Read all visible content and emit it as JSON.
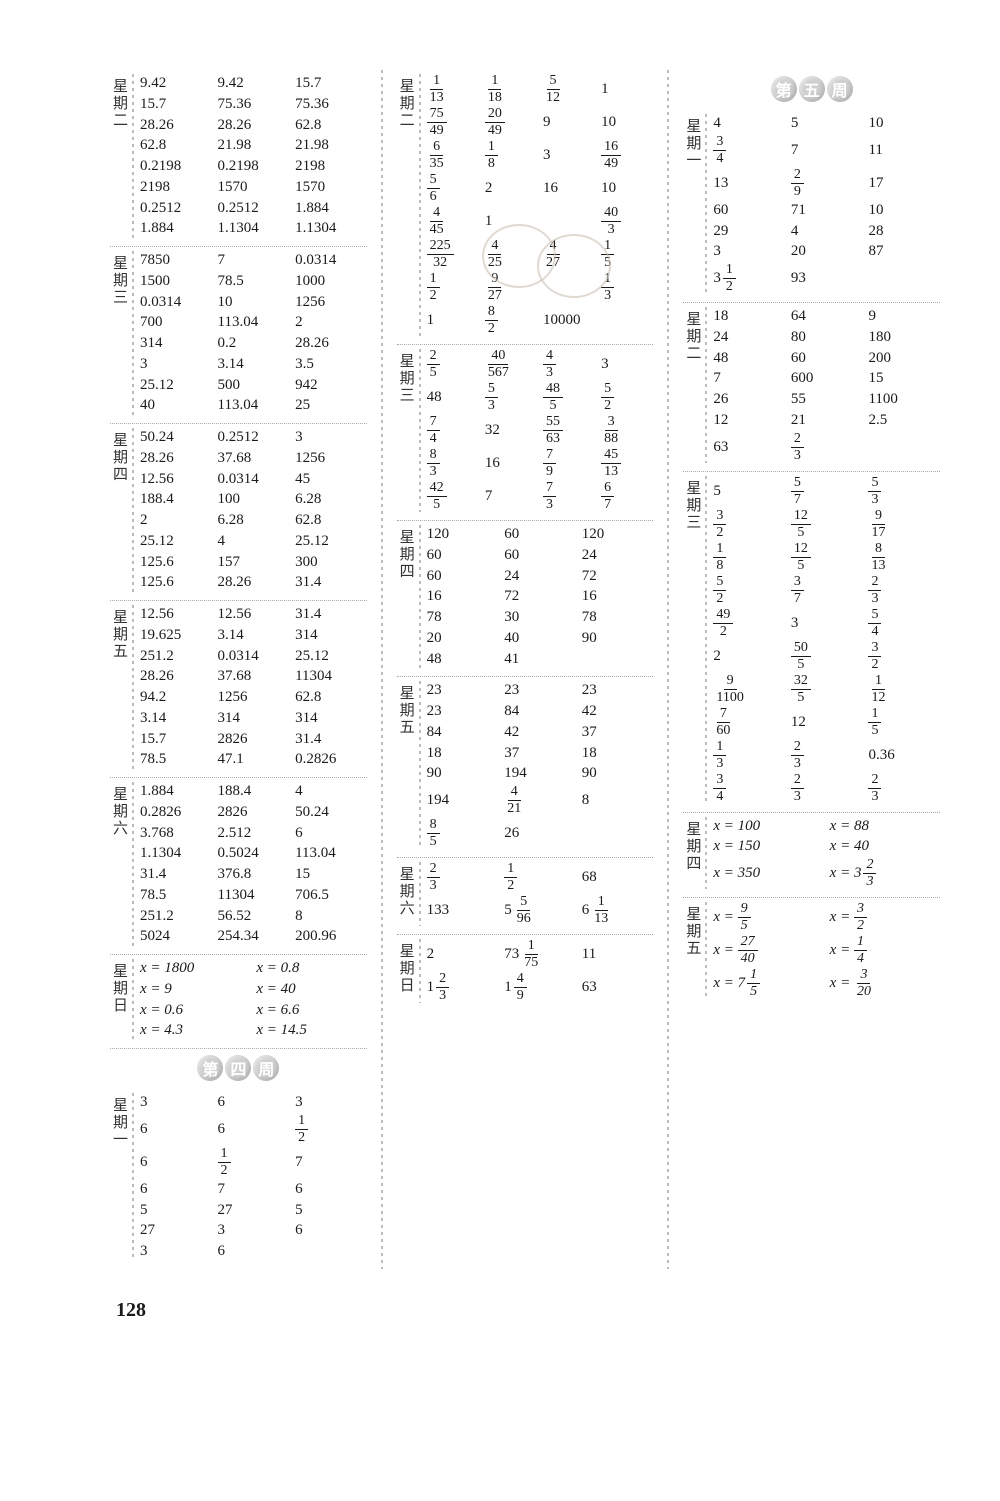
{
  "page_number": "128",
  "week_badges": {
    "w4": [
      "第",
      "四",
      "周"
    ],
    "w5": [
      "第",
      "五",
      "周"
    ]
  },
  "columns": [
    {
      "blocks": [
        {
          "label": "星期二",
          "cols": 3,
          "cells": [
            "9.42",
            "9.42",
            "15.7",
            "15.7",
            "75.36",
            "75.36",
            "28.26",
            "28.26",
            "62.8",
            "62.8",
            "21.98",
            "21.98",
            "0.2198",
            "0.2198",
            "2198",
            "2198",
            "1570",
            "1570",
            "0.2512",
            "0.2512",
            "1.884",
            "1.884",
            "1.1304",
            "1.1304"
          ]
        },
        {
          "label": "星期三",
          "cols": 3,
          "cells": [
            "7850",
            "7",
            "0.0314",
            "1500",
            "78.5",
            "1000",
            "0.0314",
            "10",
            "1256",
            "700",
            "113.04",
            "2",
            "314",
            "0.2",
            "28.26",
            "3",
            "3.14",
            "3.5",
            "25.12",
            "500",
            "942",
            "40",
            "113.04",
            "25"
          ]
        },
        {
          "label": "星期四",
          "cols": 3,
          "cells": [
            "50.24",
            "0.2512",
            "3",
            "28.26",
            "37.68",
            "1256",
            "12.56",
            "0.0314",
            "45",
            "188.4",
            "100",
            "6.28",
            "2",
            "6.28",
            "62.8",
            "25.12",
            "4",
            "25.12",
            "125.6",
            "157",
            "300",
            "125.6",
            "28.26",
            "31.4"
          ]
        },
        {
          "label": "星期五",
          "cols": 3,
          "cells": [
            "12.56",
            "12.56",
            "31.4",
            "19.625",
            "3.14",
            "314",
            "251.2",
            "0.0314",
            "25.12",
            "28.26",
            "37.68",
            "11304",
            "94.2",
            "1256",
            "62.8",
            "3.14",
            "314",
            "314",
            "15.7",
            "2826",
            "31.4",
            "78.5",
            "47.1",
            "0.2826"
          ]
        },
        {
          "label": "星期六",
          "cols": 3,
          "cells": [
            "1.884",
            "188.4",
            "4",
            "0.2826",
            "2826",
            "50.24",
            "3.768",
            "2.512",
            "6",
            "1.1304",
            "0.5024",
            "113.04",
            "31.4",
            "376.8",
            "15",
            "78.5",
            "11304",
            "706.5",
            "251.2",
            "56.52",
            "8",
            "5024",
            "254.34",
            "200.96"
          ]
        },
        {
          "label": "星期日",
          "cols": 2,
          "italic": true,
          "cells": [
            "x = 1800",
            "x = 0.8",
            "x = 9",
            "x = 40",
            "x = 0.6",
            "x = 6.6",
            "x = 4.3",
            "x = 14.5"
          ]
        },
        {
          "badge": "w4"
        },
        {
          "label": "星期一",
          "cols": 3,
          "cells": [
            "3",
            "6",
            "3",
            "6",
            "6",
            {
              "f": [
                "1",
                "2"
              ]
            },
            "6",
            {
              "f": [
                "1",
                "2"
              ]
            },
            "7",
            "6",
            "7",
            "6",
            "5",
            "27",
            "5",
            "27",
            "3",
            "6",
            "3",
            "6",
            ""
          ]
        }
      ]
    },
    {
      "blocks": [
        {
          "label": "星期二",
          "cols": 4,
          "cells": [
            {
              "f": [
                "1",
                "13"
              ]
            },
            {
              "f": [
                "1",
                "18"
              ]
            },
            {
              "f": [
                "5",
                "12"
              ]
            },
            "1",
            {
              "f": [
                "75",
                "49"
              ]
            },
            {
              "f": [
                "20",
                "49"
              ]
            },
            "9",
            "10",
            {
              "f": [
                "6",
                "35"
              ]
            },
            {
              "f": [
                "1",
                "8"
              ]
            },
            "3",
            {
              "f": [
                "16",
                "49"
              ]
            },
            {
              "f": [
                "5",
                "6"
              ]
            },
            "2",
            "16",
            "10",
            {
              "f": [
                "4",
                "45"
              ]
            },
            "1",
            "",
            {
              "f": [
                "40",
                "3"
              ]
            },
            {
              "f": [
                "225",
                "32"
              ]
            },
            {
              "f": [
                "4",
                "25"
              ]
            },
            {
              "f": [
                "4",
                "27"
              ]
            },
            {
              "f": [
                "1",
                "5"
              ]
            },
            {
              "f": [
                "1",
                "2"
              ]
            },
            {
              "f": [
                "9",
                "27"
              ]
            },
            "",
            {
              "f": [
                "1",
                "3"
              ]
            },
            "1",
            {
              "f": [
                "8",
                "2"
              ]
            },
            "10000",
            ""
          ],
          "stamp": true
        },
        {
          "label": "星期三",
          "cols": 4,
          "cells": [
            {
              "f": [
                "2",
                "5"
              ]
            },
            {
              "f": [
                "40",
                "567"
              ]
            },
            {
              "f": [
                "4",
                "3"
              ]
            },
            "3",
            "48",
            {
              "f": [
                "5",
                "3"
              ]
            },
            {
              "f": [
                "48",
                "5"
              ]
            },
            {
              "f": [
                "5",
                "2"
              ]
            },
            {
              "f": [
                "7",
                "4"
              ]
            },
            "32",
            {
              "f": [
                "55",
                "63"
              ]
            },
            {
              "f": [
                "3",
                "88"
              ]
            },
            {
              "f": [
                "8",
                "3"
              ]
            },
            "16",
            {
              "f": [
                "7",
                "9"
              ]
            },
            {
              "f": [
                "45",
                "13"
              ]
            },
            {
              "f": [
                "42",
                "5"
              ]
            },
            "7",
            {
              "f": [
                "7",
                "3"
              ]
            },
            {
              "f": [
                "6",
                "7"
              ]
            }
          ]
        },
        {
          "label": "星期四",
          "cols": 3,
          "cells": [
            "120",
            "60",
            "120",
            "60",
            "60",
            "24",
            "60",
            "24",
            "72",
            "16",
            "72",
            "16",
            "78",
            "30",
            "78",
            "20",
            "40",
            "90",
            "48",
            "41",
            ""
          ]
        },
        {
          "label": "星期五",
          "cols": 3,
          "cells": [
            "23",
            "23",
            "23",
            "23",
            "84",
            "42",
            "84",
            "42",
            "37",
            "18",
            "37",
            "18",
            "90",
            "194",
            "90",
            "194",
            {
              "f": [
                "4",
                "21"
              ]
            },
            "8",
            {
              "f": [
                "8",
                "5"
              ]
            },
            "26",
            ""
          ]
        },
        {
          "label": "星期六",
          "cols": 3,
          "cells": [
            {
              "f": [
                "2",
                "3"
              ]
            },
            {
              "f": [
                "1",
                "2"
              ]
            },
            "68",
            "133",
            {
              "m": [
                "5",
                "5",
                "96"
              ]
            },
            {
              "m": [
                "6",
                "1",
                "13"
              ]
            }
          ]
        },
        {
          "label": "星期日",
          "cols": 3,
          "cells": [
            "2",
            {
              "m": [
                "73",
                "1",
                "75"
              ]
            },
            "11",
            {
              "m": [
                "1",
                "2",
                "3"
              ]
            },
            {
              "m": [
                "1",
                "4",
                "9"
              ]
            },
            "63"
          ]
        }
      ]
    },
    {
      "blocks": [
        {
          "badge": "w5"
        },
        {
          "label": "星期一",
          "cols": 3,
          "cells": [
            "4",
            "5",
            "10",
            {
              "f": [
                "3",
                "4"
              ]
            },
            "7",
            "11",
            "13",
            {
              "f": [
                "2",
                "9"
              ]
            },
            "17",
            "60",
            "71",
            "10",
            "29",
            "4",
            "28",
            "3",
            "20",
            "87",
            {
              "m": [
                "3",
                "1",
                "2"
              ]
            },
            "93",
            ""
          ]
        },
        {
          "label": "星期二",
          "cols": 3,
          "cells": [
            "18",
            "64",
            "9",
            "24",
            "80",
            "180",
            "48",
            "60",
            "200",
            "7",
            "600",
            "15",
            "26",
            "55",
            "1100",
            "12",
            "21",
            "2.5",
            "63",
            {
              "f": [
                "2",
                "3"
              ]
            },
            ""
          ]
        },
        {
          "label": "星期三",
          "cols": 3,
          "cells": [
            "5",
            {
              "f": [
                "5",
                "7"
              ]
            },
            {
              "f": [
                "5",
                "3"
              ]
            },
            {
              "f": [
                "3",
                "2"
              ]
            },
            {
              "f": [
                "12",
                "5"
              ]
            },
            {
              "f": [
                "9",
                "17"
              ]
            },
            {
              "f": [
                "1",
                "8"
              ]
            },
            {
              "f": [
                "12",
                "5"
              ]
            },
            {
              "f": [
                "8",
                "13"
              ]
            },
            {
              "f": [
                "5",
                "2"
              ]
            },
            {
              "f": [
                "3",
                "7"
              ]
            },
            {
              "f": [
                "2",
                "3"
              ]
            },
            {
              "f": [
                "49",
                "2"
              ]
            },
            "3",
            {
              "f": [
                "5",
                "4"
              ]
            },
            "2",
            {
              "f": [
                "50",
                "5"
              ]
            },
            {
              "f": [
                "3",
                "2"
              ]
            },
            {
              "f": [
                "9",
                "1100"
              ]
            },
            {
              "f": [
                "32",
                "5"
              ]
            },
            {
              "f": [
                "1",
                "12"
              ]
            },
            {
              "f": [
                "7",
                "60"
              ]
            },
            "12",
            {
              "f": [
                "1",
                "5"
              ]
            },
            {
              "f": [
                "1",
                "3"
              ]
            },
            {
              "f": [
                "2",
                "3"
              ]
            },
            "0.36",
            {
              "f": [
                "3",
                "4"
              ]
            },
            {
              "f": [
                "2",
                "3"
              ]
            },
            {
              "f": [
                "2",
                "3"
              ]
            }
          ]
        },
        {
          "label": "星期四",
          "cols": 2,
          "italic": true,
          "cells": [
            "x = 100",
            "x = 88",
            "x = 150",
            "x = 40",
            "x = 350",
            {
              "pre": "x = ",
              "m": [
                "3",
                "2",
                "3"
              ]
            }
          ]
        },
        {
          "label": "星期五",
          "cols": 2,
          "italic": true,
          "cells": [
            {
              "pre": "x = ",
              "f": [
                "9",
                "5"
              ]
            },
            {
              "pre": "x = ",
              "f": [
                "3",
                "2"
              ]
            },
            {
              "pre": "x = ",
              "f": [
                "27",
                "40"
              ]
            },
            {
              "pre": "x = ",
              "f": [
                "1",
                "4"
              ]
            },
            {
              "pre": "x = ",
              "m": [
                "7",
                "1",
                "5"
              ]
            },
            {
              "pre": "x = ",
              "f": [
                "3",
                "20"
              ]
            }
          ]
        }
      ]
    }
  ]
}
